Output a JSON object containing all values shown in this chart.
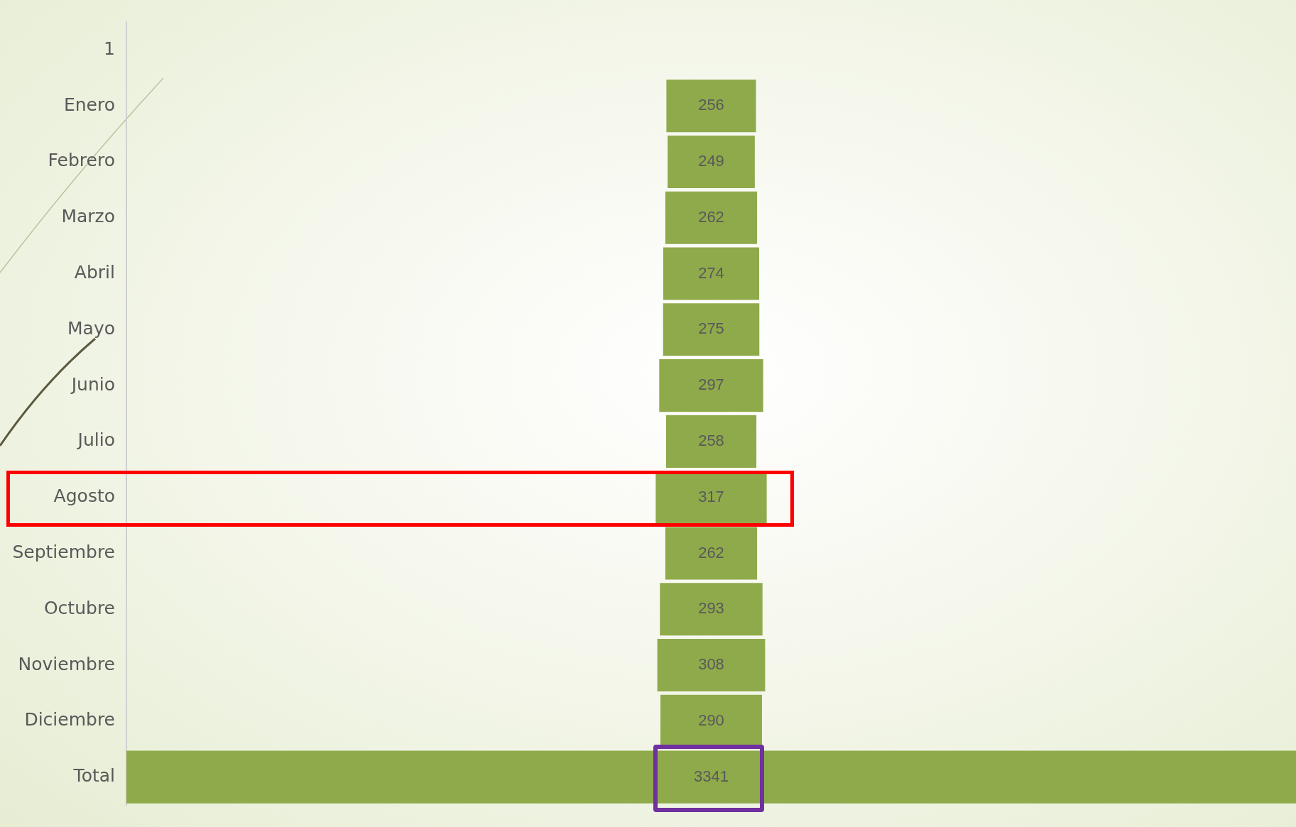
{
  "chart_data": {
    "type": "other",
    "categories": [
      "1",
      "Enero",
      "Febrero",
      "Marzo",
      "Abril",
      "Mayo",
      "Junio",
      "Julio",
      "Agosto",
      "Septiembre",
      "Octubre",
      "Noviembre",
      "Diciembre",
      "Total"
    ],
    "values": [
      null,
      256,
      249,
      262,
      274,
      275,
      297,
      258,
      317,
      262,
      293,
      308,
      290,
      3341
    ],
    "color": "#8faa4b",
    "data_labels": true
  }
}
